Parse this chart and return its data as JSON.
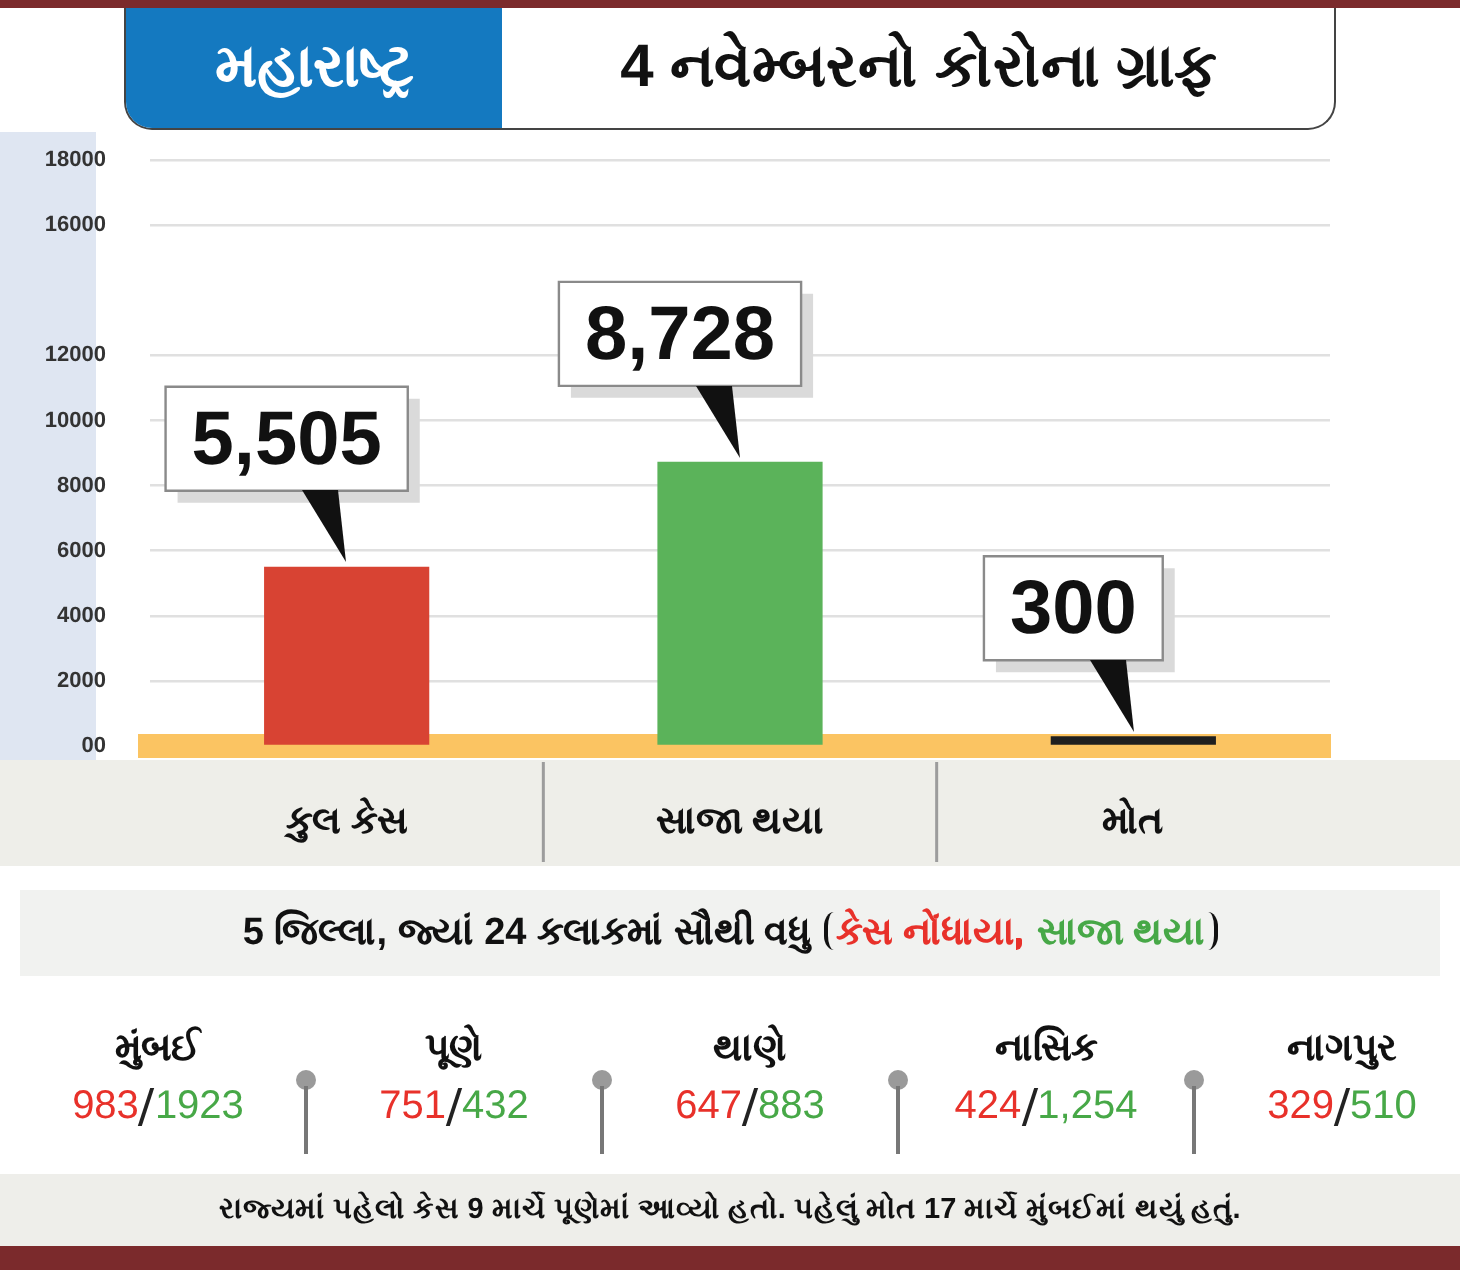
{
  "chart_data": [
    {
      "type": "bar",
      "title": "4 નવેમ્બરનો કોરોના ગ્રાફ",
      "subtitle": "મહારાષ્ટ્ર",
      "categories": [
        "કુલ કેસ",
        "સાજા થયા",
        "મોત"
      ],
      "values": [
        5505,
        8728,
        300
      ],
      "colors": [
        "#d84333",
        "#5bb35a",
        "#1f1f1f"
      ],
      "value_labels": [
        "5,505",
        "8,728",
        "300"
      ],
      "ylim": [
        0,
        18000
      ],
      "yticks": [
        {
          "value": 0,
          "label": "00"
        },
        2000,
        4000,
        6000,
        8000,
        10000,
        12000,
        16000,
        18000
      ],
      "grid": "y"
    },
    {
      "type": "other",
      "title": "5 જિલ્લા, જ્યાં 24 કલાકમાં સૌથી વધુ",
      "categories": [
        "મુંબઈ",
        "પૂણે",
        "થાણે",
        "નાસિક",
        "નાગપુર"
      ],
      "series": [
        {
          "name": "કેસ નોંધાયા",
          "color": "#e8312a",
          "values": [
            983,
            751,
            647,
            424,
            329
          ],
          "value_labels": [
            "983",
            "751",
            "647",
            "424",
            "329"
          ]
        },
        {
          "name": "સાજા થયા",
          "color": "#47a847",
          "values": [
            1923,
            432,
            883,
            1254,
            510
          ],
          "value_labels": [
            "1923",
            "432",
            "883",
            "1,254",
            "510"
          ]
        }
      ],
      "annotations": [
        "રાજ્યમાં પહેલો કેસ 9 માર્ચે પૂણેમાં આવ્યો હતો. પહેલું મોત 17 માર્ચે મુંબઈમાં થયું હતું."
      ]
    }
  ]
}
